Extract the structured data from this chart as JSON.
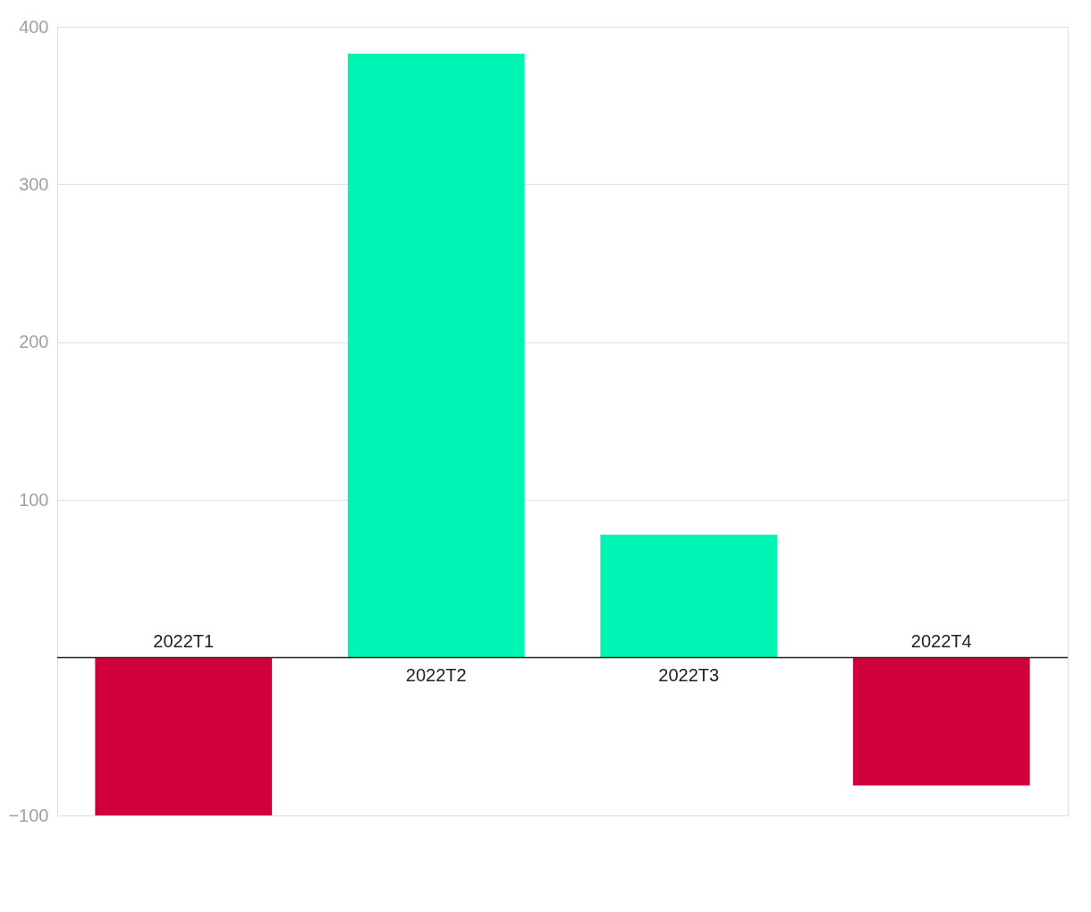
{
  "chart_data": {
    "type": "bar",
    "categories": [
      "2022T1",
      "2022T2",
      "2022T3",
      "2022T4"
    ],
    "values": [
      -100,
      383,
      78,
      -81
    ],
    "colors": [
      "#d0003d",
      "#00f4b4",
      "#00f4b4",
      "#d0003d"
    ],
    "ylim": [
      -100,
      400
    ],
    "yticks": [
      {
        "value": -100,
        "label": "−100"
      },
      100,
      200,
      300,
      400
    ],
    "grid": "y"
  }
}
